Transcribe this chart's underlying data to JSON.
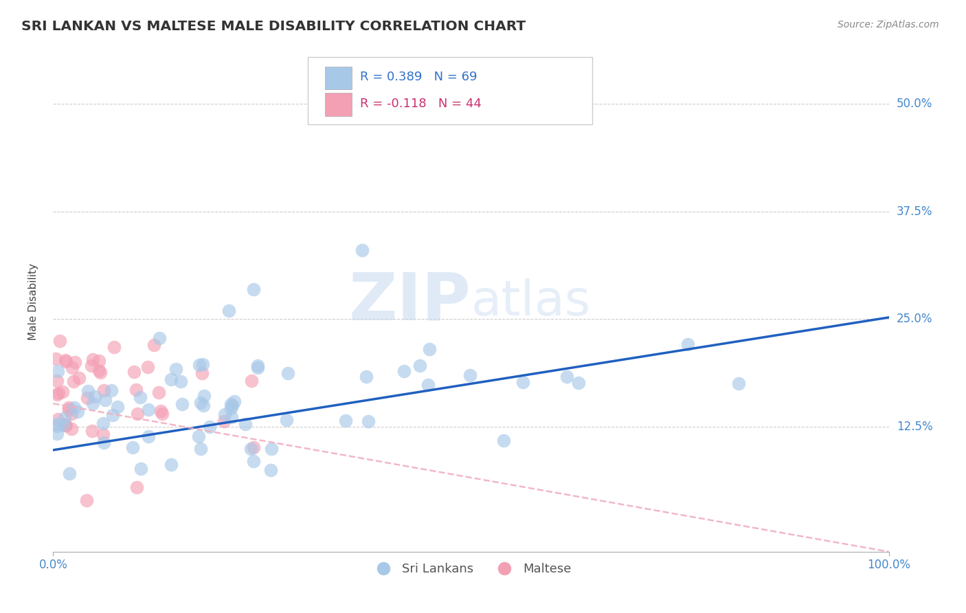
{
  "title": "SRI LANKAN VS MALTESE MALE DISABILITY CORRELATION CHART",
  "source": "Source: ZipAtlas.com",
  "ylabel": "Male Disability",
  "xlim": [
    0.0,
    1.0
  ],
  "ylim": [
    -0.02,
    0.56
  ],
  "sri_lankan_color": "#a8c8e8",
  "maltese_color": "#f4a0b4",
  "sri_lankan_line_color": "#2060c0",
  "maltese_line_color": "#f0b0c0",
  "background_color": "#ffffff",
  "grid_color": "#cccccc",
  "ytick_color": "#4488cc",
  "xtick_color": "#4488cc",
  "watermark_zip": "ZIP",
  "watermark_atlas": "atlas",
  "sl_line_x0": 0.0,
  "sl_line_y0": 0.098,
  "sl_line_x1": 1.0,
  "sl_line_y1": 0.252,
  "mal_line_x0": 0.0,
  "mal_line_y0": 0.152,
  "mal_line_x1": 1.0,
  "mal_line_y1": -0.02,
  "legend_R_sri": "R = 0.389",
  "legend_N_sri": "N = 69",
  "legend_R_mal": "R = -0.118",
  "legend_N_mal": "N = 44"
}
